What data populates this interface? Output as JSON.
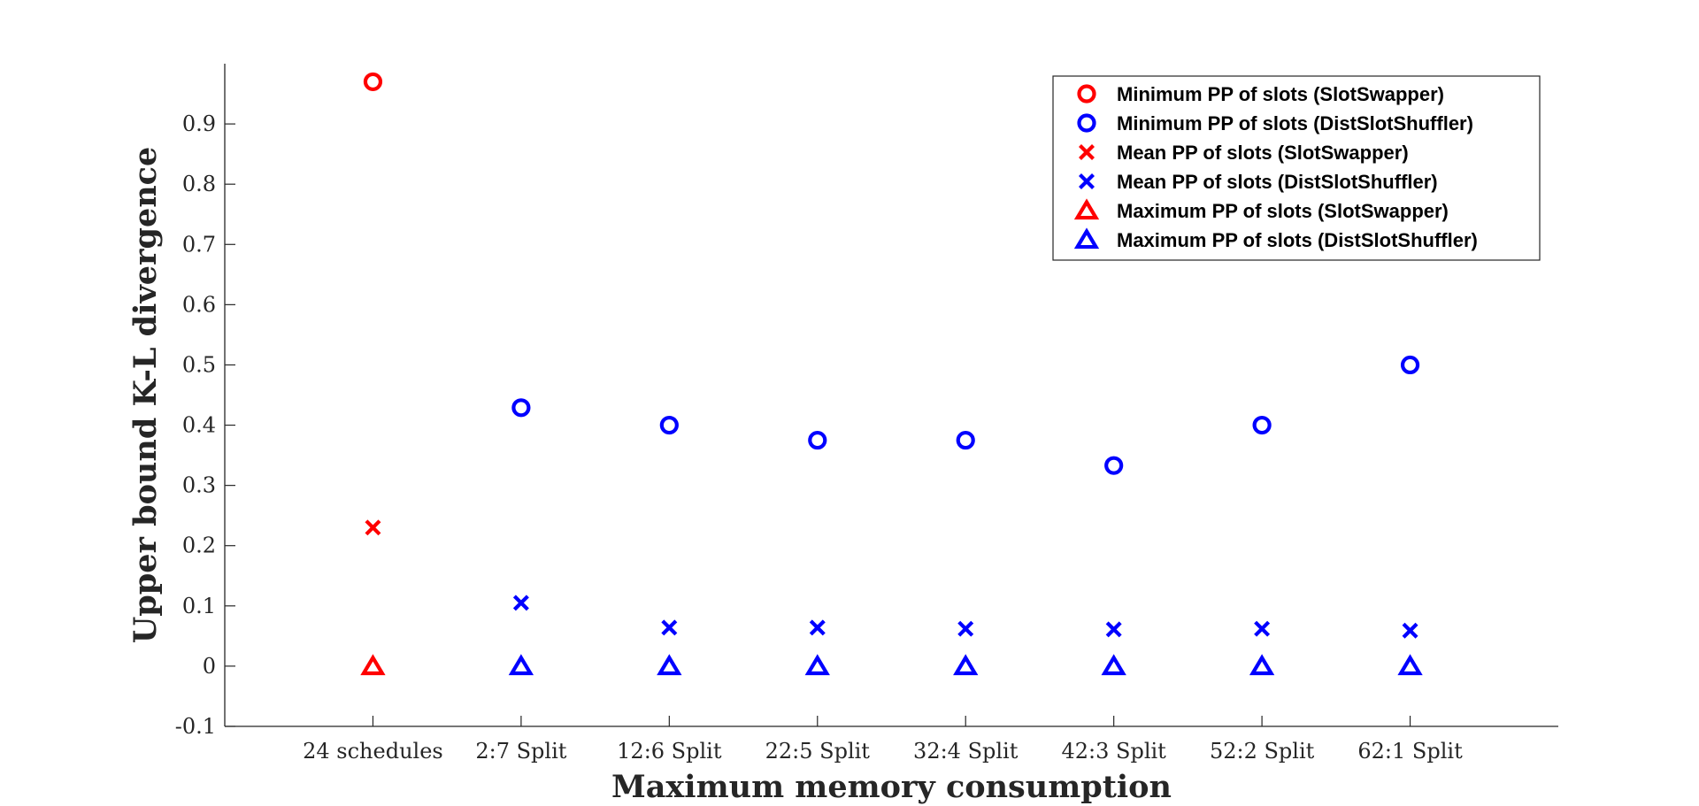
{
  "colors": {
    "swapper": "#ff0000",
    "shuffler": "#0000ff",
    "axis": "#262626"
  },
  "chart_data": {
    "type": "scatter",
    "xlabel": "Maximum memory consumption",
    "ylabel": "Upper bound K-L divergence",
    "categories": [
      "24 schedules",
      "2:7 Split",
      "12:6 Split",
      "22:5 Split",
      "32:4 Split",
      "42:3 Split",
      "52:2 Split",
      "62:1 Split"
    ],
    "ylim": [
      -0.1,
      1.0
    ],
    "yticks": [
      -0.1,
      0,
      0.1,
      0.2,
      0.3,
      0.4,
      0.5,
      0.6,
      0.7,
      0.8,
      0.9
    ],
    "ytick_labels": [
      "-0.1",
      "0",
      "0.1",
      "0.2",
      "0.3",
      "0.4",
      "0.5",
      "0.6",
      "0.7",
      "0.8",
      "0.9"
    ],
    "grid": false,
    "legend_position": "top-right",
    "series": [
      {
        "name": "Minimum PP of slots (SlotSwapper)",
        "marker": "circle",
        "color": "#ff0000",
        "values": [
          0.97,
          null,
          null,
          null,
          null,
          null,
          null,
          null
        ]
      },
      {
        "name": "Minimum PP of slots (DistSlotShuffler)",
        "marker": "circle",
        "color": "#0000ff",
        "values": [
          null,
          0.429,
          0.4,
          0.375,
          0.375,
          0.333,
          0.4,
          0.5
        ]
      },
      {
        "name": "Mean PP of slots (SlotSwapper)",
        "marker": "x",
        "color": "#ff0000",
        "values": [
          0.23,
          null,
          null,
          null,
          null,
          null,
          null,
          null
        ]
      },
      {
        "name": "Mean PP of slots (DistSlotShuffler)",
        "marker": "x",
        "color": "#0000ff",
        "values": [
          null,
          0.105,
          0.064,
          0.064,
          0.062,
          0.061,
          0.062,
          0.059
        ]
      },
      {
        "name": "Maximum PP of slots (SlotSwapper)",
        "marker": "triangle",
        "color": "#ff0000",
        "values": [
          0.0,
          null,
          null,
          null,
          null,
          null,
          null,
          null
        ]
      },
      {
        "name": "Maximum PP of slots (DistSlotShuffler)",
        "marker": "triangle",
        "color": "#0000ff",
        "values": [
          null,
          0.0,
          0.0,
          0.0,
          0.0,
          0.0,
          0.0,
          0.0
        ]
      }
    ]
  }
}
